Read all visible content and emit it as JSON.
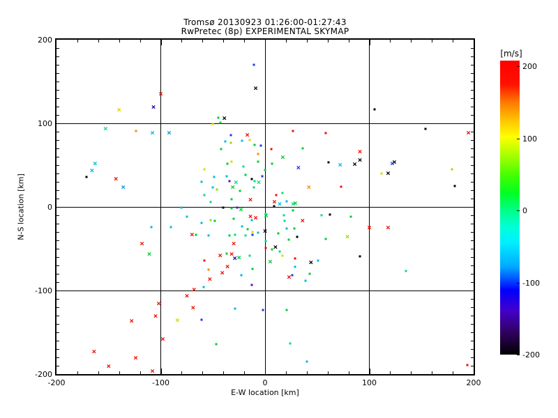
{
  "title": {
    "line1": "Tromsø 20130923 01:26:00-01:27:43",
    "line2": "RwPretec (8p) EXPERIMENTAL SKYMAP"
  },
  "axes": {
    "xlabel": "E-W location [km]",
    "ylabel": "N-S location [km]",
    "xlim": [
      -200,
      200
    ],
    "ylim": [
      -200,
      200
    ],
    "xticks": [
      -200,
      -100,
      0,
      100,
      200
    ],
    "yticks": [
      -200,
      -100,
      0,
      100,
      200
    ],
    "xminor": 20,
    "yminor": 10,
    "grid": "on"
  },
  "colorbar": {
    "label": "[m/s]",
    "ticks": [
      200,
      100,
      0,
      -100,
      -200
    ],
    "min": -200,
    "max": 200
  },
  "palette": {
    "r": "#ee1000",
    "o": "#ff8800",
    "y": "#d8d800",
    "yg": "#99dd00",
    "g": "#00cc33",
    "sg": "#00dd88",
    "c": "#00bbdd",
    "lb": "#0099ee",
    "b": "#2233ee",
    "nv": "#2200aa",
    "pu": "#5511bb",
    "k": "#000000"
  },
  "chart_data": {
    "type": "scatter",
    "title": "RwPretec (8p) EXPERIMENTAL SKYMAP",
    "xlabel": "E-W location [km]",
    "ylabel": "N-S location [km]",
    "xlim": [
      -200,
      200
    ],
    "ylim": [
      -200,
      200
    ],
    "color_scale": "rainbow velocity [m/s], -200 (black) to 200 (red)",
    "marker_key": "x = cross marker, d = small dot marker; color key in palette",
    "points": [
      [
        -100,
        135,
        "r",
        "x"
      ],
      [
        -107,
        119,
        "nv",
        "x"
      ],
      [
        -140,
        116,
        "y",
        "x"
      ],
      [
        -153,
        93,
        "sg",
        "x"
      ],
      [
        -124,
        91,
        "o",
        "d"
      ],
      [
        -108,
        88,
        "c",
        "x"
      ],
      [
        -92,
        88,
        "lb",
        "x"
      ],
      [
        -11,
        170,
        "b",
        "d"
      ],
      [
        -9,
        142,
        "k",
        "x"
      ],
      [
        -45,
        107,
        "g",
        "d"
      ],
      [
        -39,
        106,
        "k",
        "x"
      ],
      [
        -43,
        101,
        "g",
        "d"
      ],
      [
        -50,
        99,
        "y",
        "d"
      ],
      [
        -33,
        86,
        "b",
        "d"
      ],
      [
        -17,
        86,
        "r",
        "x"
      ],
      [
        -38,
        78,
        "c",
        "d"
      ],
      [
        -33,
        77,
        "yg",
        "d"
      ],
      [
        -22,
        79,
        "c",
        "d"
      ],
      [
        -15,
        80,
        "y",
        "d"
      ],
      [
        -42,
        69,
        "g",
        "d"
      ],
      [
        -10,
        74,
        "g",
        "d"
      ],
      [
        -4,
        73,
        "b",
        "d"
      ],
      [
        6,
        69,
        "r",
        "d"
      ],
      [
        27,
        91,
        "r",
        "d"
      ],
      [
        58,
        88,
        "r",
        "d"
      ],
      [
        36,
        70,
        "g",
        "d"
      ],
      [
        105,
        117,
        "k",
        "d"
      ],
      [
        154,
        93,
        "k",
        "d"
      ],
      [
        195,
        88,
        "r",
        "x"
      ],
      [
        91,
        66,
        "r",
        "x"
      ],
      [
        -163,
        52,
        "c",
        "x"
      ],
      [
        -166,
        43,
        "c",
        "x"
      ],
      [
        -171,
        36,
        "k",
        "d"
      ],
      [
        -143,
        33,
        "r",
        "x"
      ],
      [
        -136,
        23,
        "lb",
        "x"
      ],
      [
        -80,
        -1,
        "c",
        "d"
      ],
      [
        -75,
        -12,
        "c",
        "d"
      ],
      [
        -109,
        -24,
        "c",
        "d"
      ],
      [
        -90,
        -24,
        "c",
        "d"
      ],
      [
        -70,
        -33,
        "r",
        "x"
      ],
      [
        -66,
        -33,
        "g",
        "d"
      ],
      [
        -118,
        -44,
        "r",
        "x"
      ],
      [
        -111,
        -57,
        "g",
        "x"
      ],
      [
        -7,
        63,
        "o",
        "d"
      ],
      [
        17,
        59,
        "g",
        "x"
      ],
      [
        61,
        53,
        "k",
        "d"
      ],
      [
        -36,
        52,
        "g",
        "d"
      ],
      [
        -32,
        54,
        "y",
        "d"
      ],
      [
        32,
        47,
        "b",
        "x"
      ],
      [
        -58,
        45,
        "y",
        "d"
      ],
      [
        -7,
        54,
        "g",
        "d"
      ],
      [
        -21,
        48,
        "sg",
        "d"
      ],
      [
        0,
        44,
        "g",
        "d"
      ],
      [
        7,
        52,
        "g",
        "d"
      ],
      [
        -37,
        37,
        "c",
        "d"
      ],
      [
        -3,
        37,
        "b",
        "d"
      ],
      [
        -61,
        30,
        "c",
        "d"
      ],
      [
        -49,
        36,
        "c",
        "d"
      ],
      [
        -34,
        31,
        "pu",
        "d"
      ],
      [
        -28,
        29,
        "sg",
        "x"
      ],
      [
        -13,
        33,
        "k",
        "d"
      ],
      [
        -10,
        31,
        "sg",
        "d"
      ],
      [
        -6,
        29,
        "sg",
        "x"
      ],
      [
        -19,
        38,
        "g",
        "d"
      ],
      [
        42,
        23,
        "o",
        "x"
      ],
      [
        -31,
        23,
        "g",
        "x"
      ],
      [
        -24,
        19,
        "g",
        "d"
      ],
      [
        -11,
        23,
        "sg",
        "d"
      ],
      [
        -50,
        23,
        "c",
        "d"
      ],
      [
        -46,
        21,
        "yg",
        "d"
      ],
      [
        -58,
        14,
        "sg",
        "d"
      ],
      [
        11,
        14,
        "r",
        "d"
      ],
      [
        17,
        17,
        "sg",
        "d"
      ],
      [
        -32,
        9,
        "g",
        "d"
      ],
      [
        -14,
        8,
        "r",
        "x"
      ],
      [
        9,
        6,
        "r",
        "x"
      ],
      [
        14,
        3,
        "c",
        "x"
      ],
      [
        9,
        1,
        "k",
        "d"
      ],
      [
        21,
        7,
        "c",
        "d"
      ],
      [
        27,
        3,
        "sg",
        "x"
      ],
      [
        29,
        4,
        "g",
        "x"
      ],
      [
        -52,
        6,
        "sg",
        "d"
      ],
      [
        -32,
        -2,
        "g",
        "d"
      ],
      [
        -27,
        -1,
        "pu",
        "d"
      ],
      [
        -23,
        -3,
        "g",
        "x"
      ],
      [
        -40,
        -1,
        "k",
        "d"
      ],
      [
        27,
        -4,
        "g",
        "d"
      ],
      [
        1,
        -8,
        "sg",
        "d"
      ],
      [
        1,
        -11,
        "g",
        "x"
      ],
      [
        -14,
        -12,
        "r",
        "x"
      ],
      [
        -9,
        -13,
        "r",
        "x"
      ],
      [
        -13,
        -16,
        "c",
        "d"
      ],
      [
        18,
        -10,
        "sg",
        "d"
      ],
      [
        62,
        -9,
        "k",
        "d"
      ],
      [
        54,
        -10,
        "sg",
        "d"
      ],
      [
        36,
        -17,
        "r",
        "x"
      ],
      [
        -30,
        -14,
        "g",
        "d"
      ],
      [
        -52,
        -16,
        "yg",
        "d"
      ],
      [
        -48,
        -17,
        "g",
        "d"
      ],
      [
        -61,
        -19,
        "c",
        "d"
      ],
      [
        19,
        -17,
        "sg",
        "d"
      ],
      [
        28,
        -26,
        "g",
        "d"
      ],
      [
        21,
        -26,
        "c",
        "d"
      ],
      [
        -22,
        -23,
        "c",
        "d"
      ],
      [
        -17,
        -27,
        "g",
        "d"
      ],
      [
        0,
        -29,
        "k",
        "x"
      ],
      [
        -7,
        -31,
        "c",
        "d"
      ],
      [
        -12,
        -33,
        "b",
        "d"
      ],
      [
        -12,
        -30,
        "y",
        "d"
      ],
      [
        -19,
        -34,
        "sg",
        "d"
      ],
      [
        13,
        -32,
        "g",
        "d"
      ],
      [
        -54,
        -34,
        "c",
        "d"
      ],
      [
        -34,
        -34,
        "g",
        "d"
      ],
      [
        -29,
        -33,
        "sg",
        "d"
      ],
      [
        31,
        -36,
        "k",
        "d"
      ],
      [
        58,
        -38,
        "g",
        "d"
      ],
      [
        23,
        -39,
        "g",
        "d"
      ],
      [
        -30,
        -44,
        "r",
        "x"
      ],
      [
        1,
        -41,
        "sg",
        "d"
      ],
      [
        1,
        -49,
        "r",
        "d"
      ],
      [
        10,
        -48,
        "k",
        "x"
      ],
      [
        7,
        -51,
        "g",
        "d"
      ],
      [
        14,
        -53,
        "sg",
        "d"
      ],
      [
        -43,
        -58,
        "r",
        "x"
      ],
      [
        -32,
        -57,
        "r",
        "x"
      ],
      [
        -37,
        -56,
        "g",
        "d"
      ],
      [
        -29,
        -62,
        "nv",
        "x"
      ],
      [
        -25,
        -61,
        "g",
        "x"
      ],
      [
        -15,
        -58,
        "sg",
        "d"
      ],
      [
        -58,
        -64,
        "r",
        "d"
      ],
      [
        5,
        -66,
        "g",
        "x"
      ],
      [
        17,
        -58,
        "y",
        "d"
      ],
      [
        29,
        -62,
        "r",
        "d"
      ],
      [
        44,
        -67,
        "k",
        "x"
      ],
      [
        51,
        -64,
        "c",
        "d"
      ],
      [
        72,
        50,
        "c",
        "x"
      ],
      [
        86,
        51,
        "k",
        "x"
      ],
      [
        91,
        56,
        "k",
        "x"
      ],
      [
        124,
        53,
        "k",
        "x"
      ],
      [
        122,
        52,
        "b",
        "x"
      ],
      [
        112,
        40,
        "y",
        "d"
      ],
      [
        118,
        40,
        "k",
        "x"
      ],
      [
        179,
        45,
        "yg",
        "d"
      ],
      [
        73,
        24,
        "r",
        "d"
      ],
      [
        182,
        25,
        "k",
        "d"
      ],
      [
        82,
        -12,
        "g",
        "d"
      ],
      [
        100,
        -25,
        "r",
        "x"
      ],
      [
        118,
        -25,
        "r",
        "x"
      ],
      [
        79,
        -36,
        "yg",
        "x"
      ],
      [
        91,
        -59,
        "k",
        "d"
      ],
      [
        -68,
        -99,
        "r",
        "x"
      ],
      [
        -75,
        -107,
        "r",
        "x"
      ],
      [
        -102,
        -116,
        "r",
        "x"
      ],
      [
        -69,
        -121,
        "r",
        "x"
      ],
      [
        -105,
        -131,
        "r",
        "x"
      ],
      [
        -84,
        -136,
        "y",
        "x"
      ],
      [
        -128,
        -137,
        "r",
        "x"
      ],
      [
        -98,
        -158,
        "r",
        "x"
      ],
      [
        -164,
        -173,
        "r",
        "x"
      ],
      [
        -124,
        -181,
        "r",
        "x"
      ],
      [
        -150,
        -191,
        "r",
        "x"
      ],
      [
        -108,
        -197,
        "r",
        "x"
      ],
      [
        -54,
        -75,
        "o",
        "d"
      ],
      [
        -36,
        -72,
        "r",
        "x"
      ],
      [
        -41,
        -79,
        "r",
        "x"
      ],
      [
        -53,
        -87,
        "r",
        "x"
      ],
      [
        -23,
        -82,
        "c",
        "d"
      ],
      [
        -12,
        -74,
        "g",
        "d"
      ],
      [
        -59,
        -96,
        "c",
        "d"
      ],
      [
        -13,
        -93,
        "pu",
        "d"
      ],
      [
        29,
        -72,
        "c",
        "d"
      ],
      [
        43,
        -80,
        "g",
        "d"
      ],
      [
        23,
        -84,
        "r",
        "x"
      ],
      [
        26,
        -82,
        "b",
        "d"
      ],
      [
        39,
        -88,
        "c",
        "d"
      ],
      [
        -29,
        -122,
        "c",
        "d"
      ],
      [
        -2,
        -123,
        "b",
        "d"
      ],
      [
        -61,
        -135,
        "b",
        "d"
      ],
      [
        21,
        -123,
        "g",
        "d"
      ],
      [
        -47,
        -164,
        "g",
        "d"
      ],
      [
        24,
        -163,
        "sg",
        "d"
      ],
      [
        40,
        -185,
        "c",
        "d"
      ],
      [
        135,
        -77,
        "sg",
        "d"
      ],
      [
        194,
        -189,
        "r",
        "d"
      ]
    ]
  }
}
